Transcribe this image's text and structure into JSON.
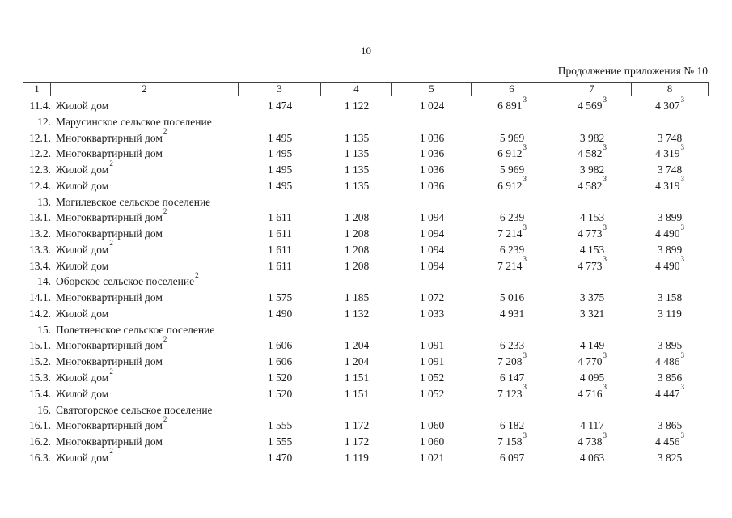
{
  "page": {
    "number": "10",
    "continuation": "Продолжение приложения № 10"
  },
  "colors": {
    "text": "#1b1b1b",
    "border": "#3f3f3f"
  },
  "table": {
    "columns": [
      "1",
      "2",
      "3",
      "4",
      "5",
      "6",
      "7",
      "8"
    ],
    "rows": [
      {
        "num": "11.4.",
        "label": "Жилой дом",
        "type": "item",
        "values": [
          "1 474",
          "1 122",
          "1 024",
          "6 891^3",
          "4 569^3",
          "4 307^3"
        ]
      },
      {
        "num": "12.",
        "label": "Марусинское сельское поселение",
        "type": "section",
        "values": [
          "",
          "",
          "",
          "",
          "",
          ""
        ]
      },
      {
        "num": "12.1.",
        "label": "Многоквартирный дом^2",
        "type": "item",
        "values": [
          "1 495",
          "1 135",
          "1 036",
          "5 969",
          "3 982",
          "3 748"
        ]
      },
      {
        "num": "12.2.",
        "label": "Многоквартирный дом",
        "type": "item",
        "values": [
          "1 495",
          "1 135",
          "1 036",
          "6 912^3",
          "4 582^3",
          "4 319^3"
        ]
      },
      {
        "num": "12.3.",
        "label": "Жилой дом^2",
        "type": "item",
        "values": [
          "1 495",
          "1 135",
          "1 036",
          "5 969",
          "3 982",
          "3 748"
        ]
      },
      {
        "num": "12.4.",
        "label": "Жилой дом",
        "type": "item",
        "values": [
          "1 495",
          "1 135",
          "1 036",
          "6 912^3",
          "4 582^3",
          "4 319^3"
        ]
      },
      {
        "num": "13.",
        "label": "Могилевское сельское поселение",
        "type": "section",
        "values": [
          "",
          "",
          "",
          "",
          "",
          ""
        ]
      },
      {
        "num": "13.1.",
        "label": "Многоквартирный дом^2",
        "type": "item",
        "values": [
          "1 611",
          "1 208",
          "1 094",
          "6 239",
          "4 153",
          "3 899"
        ]
      },
      {
        "num": "13.2.",
        "label": "Многоквартирный дом",
        "type": "item",
        "values": [
          "1 611",
          "1 208",
          "1 094",
          "7 214^3",
          "4 773^3",
          "4 490^3"
        ]
      },
      {
        "num": "13.3.",
        "label": "Жилой дом^2",
        "type": "item",
        "values": [
          "1 611",
          "1 208",
          "1 094",
          "6 239",
          "4 153",
          "3 899"
        ]
      },
      {
        "num": "13.4.",
        "label": "Жилой дом",
        "type": "item",
        "values": [
          "1 611",
          "1 208",
          "1 094",
          "7 214^3",
          "4 773^3",
          "4 490^3"
        ]
      },
      {
        "num": "14.",
        "label": "Оборское сельское поселение^2",
        "type": "section",
        "values": [
          "",
          "",
          "",
          "",
          "",
          ""
        ]
      },
      {
        "num": "14.1.",
        "label": "Многоквартирный дом",
        "type": "item",
        "values": [
          "1 575",
          "1 185",
          "1 072",
          "5 016",
          "3 375",
          "3 158"
        ]
      },
      {
        "num": "14.2.",
        "label": "Жилой дом",
        "type": "item",
        "values": [
          "1 490",
          "1 132",
          "1 033",
          "4 931",
          "3 321",
          "3 119"
        ]
      },
      {
        "num": "15.",
        "label": "Полетненское сельское поселение",
        "type": "section",
        "values": [
          "",
          "",
          "",
          "",
          "",
          ""
        ]
      },
      {
        "num": "15.1.",
        "label": "Многоквартирный дом^2",
        "type": "item",
        "values": [
          "1 606",
          "1 204",
          "1 091",
          "6 233",
          "4 149",
          "3 895"
        ]
      },
      {
        "num": "15.2.",
        "label": "Многоквартирный дом",
        "type": "item",
        "values": [
          "1 606",
          "1 204",
          "1 091",
          "7 208^3",
          "4 770^3",
          "4 486^3"
        ]
      },
      {
        "num": "15.3.",
        "label": "Жилой дом^2",
        "type": "item",
        "values": [
          "1 520",
          "1 151",
          "1 052",
          "6 147",
          "4 095",
          "3 856"
        ]
      },
      {
        "num": "15.4.",
        "label": "Жилой дом",
        "type": "item",
        "values": [
          "1 520",
          "1 151",
          "1 052",
          "7 123^3",
          "4 716^3",
          "4 447^3"
        ]
      },
      {
        "num": "16.",
        "label": "Святогорское сельское поселение",
        "type": "section",
        "values": [
          "",
          "",
          "",
          "",
          "",
          ""
        ]
      },
      {
        "num": "16.1.",
        "label": "Многоквартирный дом^2",
        "type": "item",
        "values": [
          "1 555",
          "1 172",
          "1 060",
          "6 182",
          "4 117",
          "3 865"
        ]
      },
      {
        "num": "16.2.",
        "label": "Многоквартирный дом",
        "type": "item",
        "values": [
          "1 555",
          "1 172",
          "1 060",
          "7 158^3",
          "4 738^3",
          "4 456^3"
        ]
      },
      {
        "num": "16.3.",
        "label": "Жилой дом^2",
        "type": "item",
        "values": [
          "1 470",
          "1 119",
          "1 021",
          "6 097",
          "4 063",
          "3 825"
        ]
      }
    ]
  }
}
